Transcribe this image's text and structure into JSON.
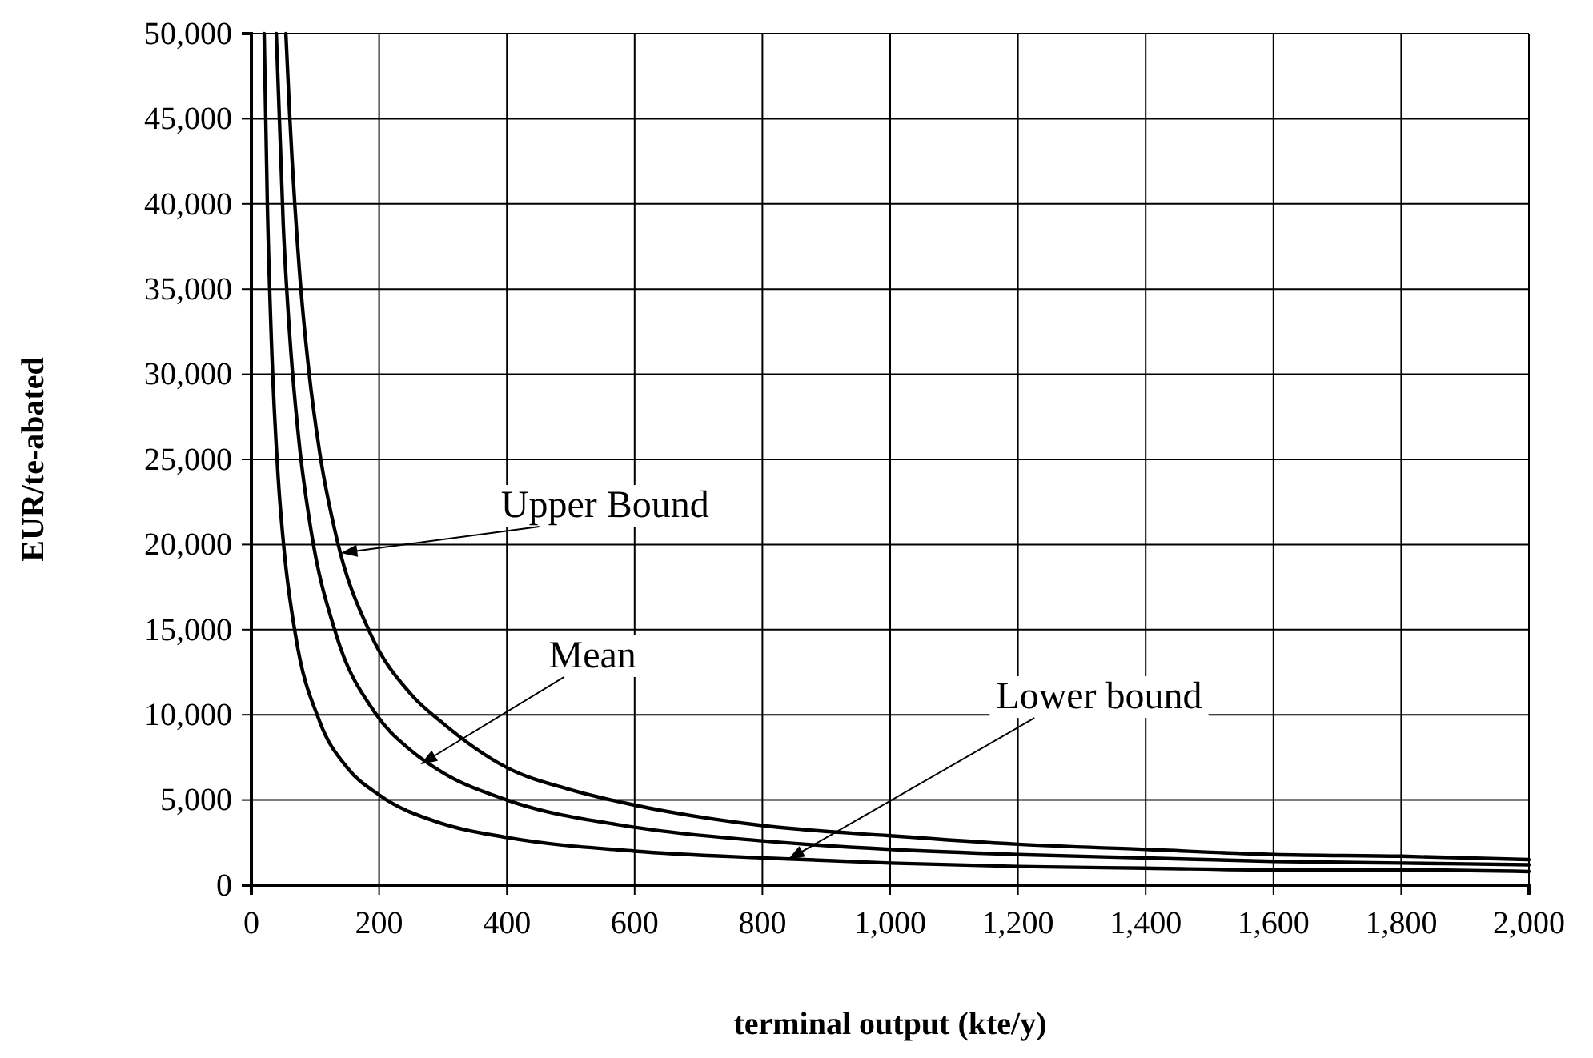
{
  "chart_data": {
    "type": "line",
    "xlabel": "terminal output (kte/y)",
    "ylabel": "EUR/te-abated",
    "xlim": [
      0,
      2000
    ],
    "ylim": [
      0,
      50000
    ],
    "xticks": [
      0,
      200,
      400,
      600,
      800,
      {
        "value": 1000,
        "label": "1,000"
      },
      {
        "value": 1200,
        "label": "1,200"
      },
      {
        "value": 1400,
        "label": "1,400"
      },
      {
        "value": 1600,
        "label": "1,600"
      },
      {
        "value": 1800,
        "label": "1,800"
      },
      {
        "value": 2000,
        "label": "2,000"
      }
    ],
    "yticks": [
      0,
      {
        "value": 5000,
        "label": "5,000"
      },
      {
        "value": 10000,
        "label": "10,000"
      },
      {
        "value": 15000,
        "label": "15,000"
      },
      {
        "value": 20000,
        "label": "20,000"
      },
      {
        "value": 25000,
        "label": "25,000"
      },
      {
        "value": 30000,
        "label": "30,000"
      },
      {
        "value": 35000,
        "label": "35,000"
      },
      {
        "value": 40000,
        "label": "40,000"
      },
      {
        "value": 45000,
        "label": "45,000"
      },
      {
        "value": 50000,
        "label": "50,000"
      }
    ],
    "grid": true,
    "marker": "none",
    "line_style": "solid",
    "series": [
      {
        "color": "#000000",
        "x": [
          54,
          60,
          75,
          90,
          107,
          134,
          186,
          250,
          300,
          400,
          500,
          600,
          800,
          1000,
          1200,
          1400,
          1600,
          1800,
          2000
        ],
        "values": [
          50000,
          45200,
          36200,
          30200,
          25400,
          20300,
          14800,
          11200,
          9500,
          6900,
          5600,
          4700,
          3500,
          2900,
          2400,
          2100,
          1800,
          1700,
          1500
        ]
      },
      {
        "color": "#000000",
        "x": [
          39,
          50,
          60,
          75,
          94,
          132,
          194,
          250,
          300,
          400,
          600,
          800,
          1000,
          1200,
          1400,
          1600,
          1800,
          2000
        ],
        "values": [
          50000,
          38700,
          32300,
          25900,
          20700,
          14800,
          10100,
          7900,
          6600,
          5000,
          3400,
          2600,
          2100,
          1800,
          1600,
          1400,
          1300,
          1200
        ]
      },
      {
        "color": "#000000",
        "x": [
          20,
          25,
          32,
          42,
          52,
          69,
          107,
          150,
          200,
          300,
          400,
          600,
          800,
          1000,
          1200,
          1400,
          1600,
          1800,
          2000
        ],
        "values": [
          50000,
          40000,
          31300,
          23900,
          19400,
          14700,
          9600,
          6900,
          5300,
          3600,
          2800,
          2000,
          1600,
          1300,
          1100,
          1000,
          900,
          900,
          800
        ]
      }
    ],
    "annotations": [
      {
        "text": "Upper Bound",
        "x": 140,
        "y": 19500
      },
      {
        "text": "Mean",
        "x": 265,
        "y": 7100
      },
      {
        "text": "Lower bound",
        "x": 840,
        "y": 1500
      }
    ]
  }
}
